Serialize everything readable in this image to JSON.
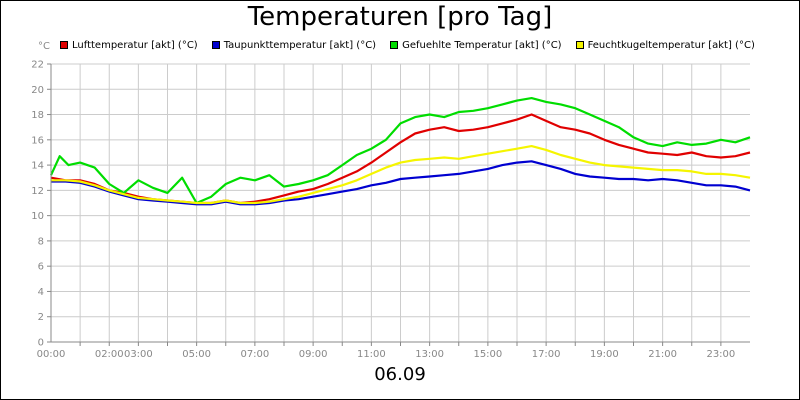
{
  "title": "Temperaturen [pro Tag]",
  "footer_date": "06.09",
  "chart_data": {
    "type": "line",
    "title": "Temperaturen [pro Tag]",
    "ylabel": "°C",
    "ylim": [
      0,
      22
    ],
    "xlim": [
      0,
      24
    ],
    "y_ticks": [
      "0",
      "2",
      "4",
      "6",
      "8",
      "10",
      "12",
      "14",
      "16",
      "18",
      "20",
      "22"
    ],
    "x_ticks": [
      {
        "t": 0,
        "label": "00:00"
      },
      {
        "t": 2,
        "label": "02:00"
      },
      {
        "t": 3,
        "label": "03:00"
      },
      {
        "t": 5,
        "label": "05:00"
      },
      {
        "t": 7,
        "label": "07:00"
      },
      {
        "t": 9,
        "label": "09:00"
      },
      {
        "t": 11,
        "label": "11:00"
      },
      {
        "t": 13,
        "label": "13:00"
      },
      {
        "t": 15,
        "label": "15:00"
      },
      {
        "t": 17,
        "label": "17:00"
      },
      {
        "t": 19,
        "label": "19:00"
      },
      {
        "t": 21,
        "label": "21:00"
      },
      {
        "t": 23,
        "label": "23:00"
      }
    ],
    "grid": true,
    "legend_position": "top",
    "series": [
      {
        "name": "Lufttemperatur [akt] (°C)",
        "color": "#e00000",
        "points": [
          [
            0,
            13.0
          ],
          [
            0.5,
            12.8
          ],
          [
            1,
            12.8
          ],
          [
            1.5,
            12.5
          ],
          [
            2,
            12.0
          ],
          [
            2.5,
            11.8
          ],
          [
            3,
            11.5
          ],
          [
            3.5,
            11.3
          ],
          [
            4,
            11.2
          ],
          [
            4.5,
            11.1
          ],
          [
            5,
            11.0
          ],
          [
            5.5,
            11.0
          ],
          [
            6,
            11.2
          ],
          [
            6.5,
            11.0
          ],
          [
            7,
            11.1
          ],
          [
            7.5,
            11.3
          ],
          [
            8,
            11.6
          ],
          [
            8.5,
            11.9
          ],
          [
            9,
            12.1
          ],
          [
            9.5,
            12.5
          ],
          [
            10,
            13.0
          ],
          [
            10.5,
            13.5
          ],
          [
            11,
            14.2
          ],
          [
            11.5,
            15.0
          ],
          [
            12,
            15.8
          ],
          [
            12.5,
            16.5
          ],
          [
            13,
            16.8
          ],
          [
            13.5,
            17.0
          ],
          [
            14,
            16.7
          ],
          [
            14.5,
            16.8
          ],
          [
            15,
            17.0
          ],
          [
            15.5,
            17.3
          ],
          [
            16,
            17.6
          ],
          [
            16.5,
            18.0
          ],
          [
            17,
            17.5
          ],
          [
            17.5,
            17.0
          ],
          [
            18,
            16.8
          ],
          [
            18.5,
            16.5
          ],
          [
            19,
            16.0
          ],
          [
            19.5,
            15.6
          ],
          [
            20,
            15.3
          ],
          [
            20.5,
            15.0
          ],
          [
            21,
            14.9
          ],
          [
            21.5,
            14.8
          ],
          [
            22,
            15.0
          ],
          [
            22.5,
            14.7
          ],
          [
            23,
            14.6
          ],
          [
            23.5,
            14.7
          ],
          [
            24,
            15.0
          ]
        ]
      },
      {
        "name": "Taupunkttemperatur [akt] (°C)",
        "color": "#0000d0",
        "points": [
          [
            0,
            12.7
          ],
          [
            0.5,
            12.7
          ],
          [
            1,
            12.6
          ],
          [
            1.5,
            12.3
          ],
          [
            2,
            11.9
          ],
          [
            2.5,
            11.6
          ],
          [
            3,
            11.3
          ],
          [
            3.5,
            11.2
          ],
          [
            4,
            11.1
          ],
          [
            4.5,
            11.0
          ],
          [
            5,
            10.9
          ],
          [
            5.5,
            10.9
          ],
          [
            6,
            11.1
          ],
          [
            6.5,
            10.9
          ],
          [
            7,
            10.9
          ],
          [
            7.5,
            11.0
          ],
          [
            8,
            11.2
          ],
          [
            8.5,
            11.3
          ],
          [
            9,
            11.5
          ],
          [
            9.5,
            11.7
          ],
          [
            10,
            11.9
          ],
          [
            10.5,
            12.1
          ],
          [
            11,
            12.4
          ],
          [
            11.5,
            12.6
          ],
          [
            12,
            12.9
          ],
          [
            12.5,
            13.0
          ],
          [
            13,
            13.1
          ],
          [
            13.5,
            13.2
          ],
          [
            14,
            13.3
          ],
          [
            14.5,
            13.5
          ],
          [
            15,
            13.7
          ],
          [
            15.5,
            14.0
          ],
          [
            16,
            14.2
          ],
          [
            16.5,
            14.3
          ],
          [
            17,
            14.0
          ],
          [
            17.5,
            13.7
          ],
          [
            18,
            13.3
          ],
          [
            18.5,
            13.1
          ],
          [
            19,
            13.0
          ],
          [
            19.5,
            12.9
          ],
          [
            20,
            12.9
          ],
          [
            20.5,
            12.8
          ],
          [
            21,
            12.9
          ],
          [
            21.5,
            12.8
          ],
          [
            22,
            12.6
          ],
          [
            22.5,
            12.4
          ],
          [
            23,
            12.4
          ],
          [
            23.5,
            12.3
          ],
          [
            24,
            12.0
          ]
        ]
      },
      {
        "name": "Gefuehlte Temperatur [akt] (°C)",
        "color": "#00dd00",
        "points": [
          [
            0,
            13.2
          ],
          [
            0.3,
            14.7
          ],
          [
            0.6,
            14.0
          ],
          [
            1,
            14.2
          ],
          [
            1.5,
            13.8
          ],
          [
            2,
            12.5
          ],
          [
            2.5,
            11.8
          ],
          [
            3,
            12.8
          ],
          [
            3.5,
            12.2
          ],
          [
            4,
            11.8
          ],
          [
            4.5,
            13.0
          ],
          [
            5,
            11.0
          ],
          [
            5.5,
            11.5
          ],
          [
            6,
            12.5
          ],
          [
            6.5,
            13.0
          ],
          [
            7,
            12.8
          ],
          [
            7.5,
            13.2
          ],
          [
            8,
            12.3
          ],
          [
            8.5,
            12.5
          ],
          [
            9,
            12.8
          ],
          [
            9.5,
            13.2
          ],
          [
            10,
            14.0
          ],
          [
            10.5,
            14.8
          ],
          [
            11,
            15.3
          ],
          [
            11.5,
            16.0
          ],
          [
            12,
            17.3
          ],
          [
            12.5,
            17.8
          ],
          [
            13,
            18.0
          ],
          [
            13.5,
            17.8
          ],
          [
            14,
            18.2
          ],
          [
            14.5,
            18.3
          ],
          [
            15,
            18.5
          ],
          [
            15.5,
            18.8
          ],
          [
            16,
            19.1
          ],
          [
            16.5,
            19.3
          ],
          [
            17,
            19.0
          ],
          [
            17.5,
            18.8
          ],
          [
            18,
            18.5
          ],
          [
            18.5,
            18.0
          ],
          [
            19,
            17.5
          ],
          [
            19.5,
            17.0
          ],
          [
            20,
            16.2
          ],
          [
            20.5,
            15.7
          ],
          [
            21,
            15.5
          ],
          [
            21.5,
            15.8
          ],
          [
            22,
            15.6
          ],
          [
            22.5,
            15.7
          ],
          [
            23,
            16.0
          ],
          [
            23.5,
            15.8
          ],
          [
            24,
            16.2
          ]
        ]
      },
      {
        "name": "Feuchtkugeltemperatur [akt] (°C)",
        "color": "#f5f500",
        "points": [
          [
            0,
            12.8
          ],
          [
            0.5,
            12.8
          ],
          [
            1,
            12.7
          ],
          [
            1.5,
            12.4
          ],
          [
            2,
            12.0
          ],
          [
            2.5,
            11.7
          ],
          [
            3,
            11.4
          ],
          [
            3.5,
            11.3
          ],
          [
            4,
            11.2
          ],
          [
            4.5,
            11.1
          ],
          [
            5,
            11.0
          ],
          [
            5.5,
            11.0
          ],
          [
            6,
            11.2
          ],
          [
            6.5,
            11.0
          ],
          [
            7,
            11.0
          ],
          [
            7.5,
            11.1
          ],
          [
            8,
            11.3
          ],
          [
            8.5,
            11.5
          ],
          [
            9,
            11.8
          ],
          [
            9.5,
            12.1
          ],
          [
            10,
            12.4
          ],
          [
            10.5,
            12.8
          ],
          [
            11,
            13.3
          ],
          [
            11.5,
            13.8
          ],
          [
            12,
            14.2
          ],
          [
            12.5,
            14.4
          ],
          [
            13,
            14.5
          ],
          [
            13.5,
            14.6
          ],
          [
            14,
            14.5
          ],
          [
            14.5,
            14.7
          ],
          [
            15,
            14.9
          ],
          [
            15.5,
            15.1
          ],
          [
            16,
            15.3
          ],
          [
            16.5,
            15.5
          ],
          [
            17,
            15.2
          ],
          [
            17.5,
            14.8
          ],
          [
            18,
            14.5
          ],
          [
            18.5,
            14.2
          ],
          [
            19,
            14.0
          ],
          [
            19.5,
            13.9
          ],
          [
            20,
            13.8
          ],
          [
            20.5,
            13.7
          ],
          [
            21,
            13.6
          ],
          [
            21.5,
            13.6
          ],
          [
            22,
            13.5
          ],
          [
            22.5,
            13.3
          ],
          [
            23,
            13.3
          ],
          [
            23.5,
            13.2
          ],
          [
            24,
            13.0
          ]
        ]
      }
    ]
  }
}
